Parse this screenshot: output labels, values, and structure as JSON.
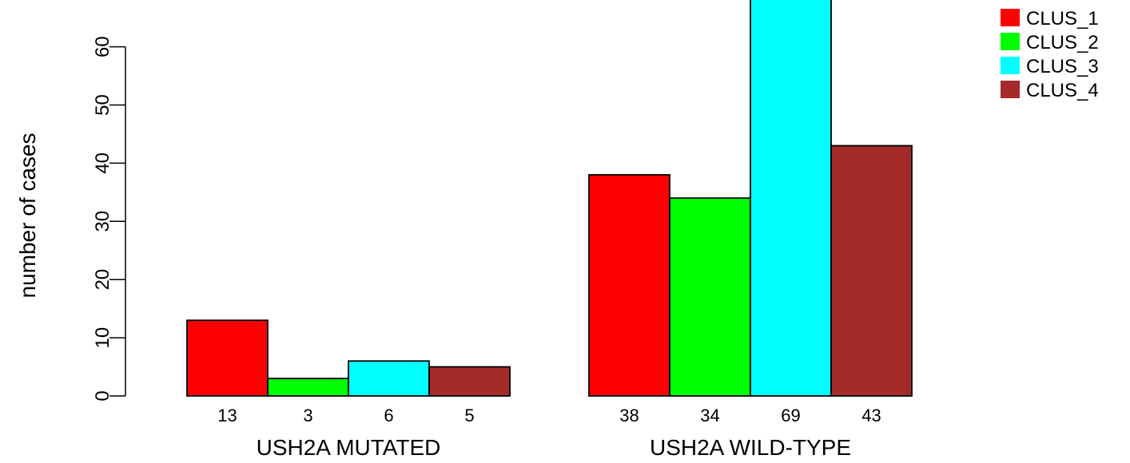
{
  "chart_data": {
    "type": "bar",
    "title": "",
    "xlabel": "",
    "ylabel": "number of cases",
    "ylim": [
      0,
      70
    ],
    "yticks": [
      0,
      10,
      20,
      30,
      40,
      50,
      60
    ],
    "grid": false,
    "legend_position": "top-right",
    "groups": [
      "USH2A MUTATED",
      "USH2A WILD-TYPE"
    ],
    "series": [
      {
        "name": "CLUS_1",
        "color": "#ff0000",
        "values": [
          13,
          38
        ]
      },
      {
        "name": "CLUS_2",
        "color": "#00ff00",
        "values": [
          3,
          34
        ]
      },
      {
        "name": "CLUS_3",
        "color": "#00ffff",
        "values": [
          6,
          69
        ]
      },
      {
        "name": "CLUS_4",
        "color": "#a52a2a",
        "values": [
          5,
          43
        ]
      }
    ]
  }
}
